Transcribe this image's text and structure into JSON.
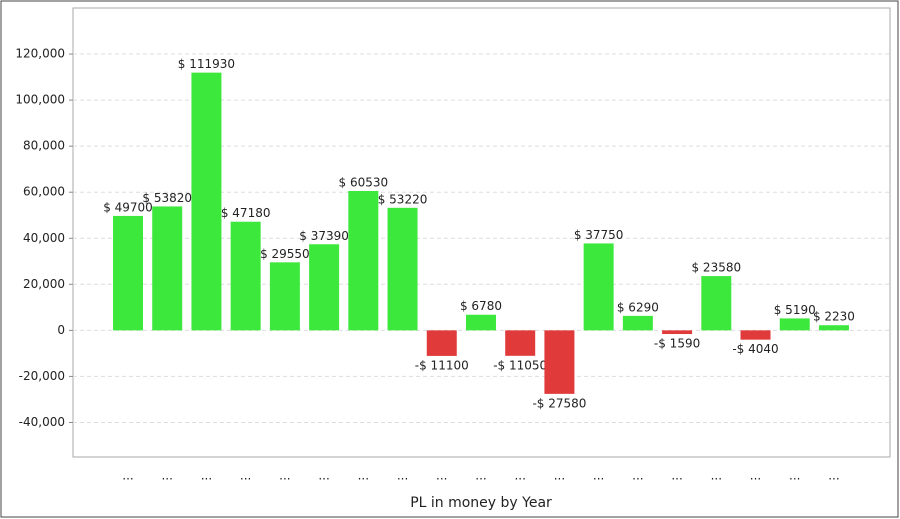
{
  "chart_data": {
    "type": "bar",
    "x_label": "PL in money by Year",
    "categories": [
      "...",
      "...",
      "...",
      "...",
      "...",
      "...",
      "...",
      "...",
      "...",
      "...",
      "...",
      "...",
      "...",
      "...",
      "...",
      "...",
      "...",
      "...",
      "..."
    ],
    "values": [
      49700,
      53820,
      111930,
      47180,
      29550,
      37390,
      60530,
      53220,
      -11100,
      6780,
      -11050,
      -27580,
      37750,
      6290,
      -1590,
      23580,
      -4040,
      5190,
      2230
    ],
    "value_labels": [
      "$ 49700",
      "$ 53820",
      "$ 111930",
      "$ 47180",
      "$ 29550",
      "$ 37390",
      "$ 60530",
      "$ 53220",
      "-$ 11100",
      "$ 6780",
      "-$ 11050",
      "-$ 27580",
      "$ 37750",
      "$ 6290",
      "-$ 1590",
      "$ 23580",
      "-$ 4040",
      "$ 5190",
      "$ 2230"
    ],
    "positive_color": "#3de83d",
    "negative_color": "#e03a3a",
    "ylim": [
      -55000,
      140000
    ],
    "yticks": [
      {
        "value": -40000,
        "label": "-40,000"
      },
      {
        "value": -20000,
        "label": "-20,000"
      },
      0,
      {
        "value": 20000,
        "label": "20,000"
      },
      {
        "value": 40000,
        "label": "40,000"
      },
      {
        "value": 60000,
        "label": "60,000"
      },
      {
        "value": 80000,
        "label": "80,000"
      },
      {
        "value": 100000,
        "label": "100,000"
      },
      {
        "value": 120000,
        "label": "120,000"
      }
    ],
    "grid": true
  }
}
